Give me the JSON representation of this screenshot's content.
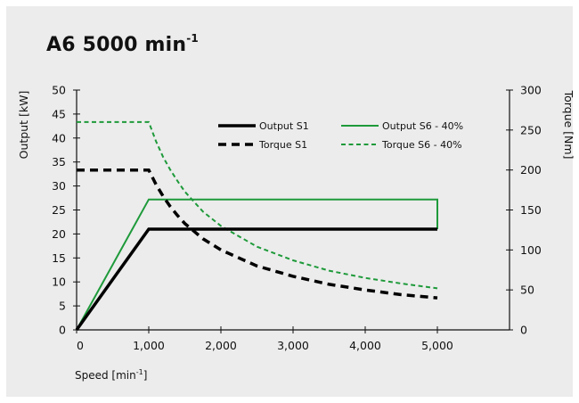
{
  "title": {
    "main": "A6 5000 min",
    "sup": "-1"
  },
  "xlabel": {
    "main": "Speed [min",
    "sup": "-1",
    "end": "]"
  },
  "chart_data": {
    "type": "line",
    "title": "A6 5000 min-1",
    "xlabel": "Speed [min-1]",
    "ylabel_left": "Output [kW]",
    "ylabel_right": "Torque [Nm]",
    "xlim": [
      0,
      6000
    ],
    "ylim_left": [
      0,
      50
    ],
    "ylim_right": [
      0,
      300
    ],
    "x_ticks": [
      0,
      1000,
      2000,
      3000,
      4000,
      5000
    ],
    "x_tick_labels": [
      "0",
      "1,000",
      "2,000",
      "3,000",
      "4,000",
      "5,000"
    ],
    "y_left_ticks": [
      0,
      5,
      10,
      15,
      20,
      25,
      30,
      35,
      40,
      45,
      50
    ],
    "y_left_tick_labels": [
      "0",
      "5",
      "10",
      "15",
      "20",
      "25",
      "30",
      "35",
      "40",
      "45",
      "50"
    ],
    "y_right_ticks": [
      0,
      50,
      100,
      150,
      200,
      250,
      300
    ],
    "y_right_tick_labels": [
      "0",
      "50",
      "100",
      "150",
      "200",
      "250",
      "300"
    ],
    "grid": false,
    "legend_position": "top-right",
    "colors": {
      "s1": "#000000",
      "s6": "#1e9a3a"
    },
    "series": [
      {
        "name": "Output S1",
        "axis": "left",
        "style": "solid",
        "color": "#000000",
        "x": [
          0,
          1000,
          5000
        ],
        "y": [
          0,
          21,
          21
        ]
      },
      {
        "name": "Torque S1",
        "axis": "right",
        "style": "dashed",
        "color": "#000000",
        "x": [
          0,
          1000,
          1100,
          1200,
          1300,
          1400,
          1500,
          1750,
          2000,
          2500,
          3000,
          3500,
          4000,
          4500,
          5000
        ],
        "y": [
          200,
          200,
          182,
          167,
          154,
          143,
          133,
          114,
          100,
          80,
          67,
          57,
          50,
          44,
          40
        ]
      },
      {
        "name": "Output S6 - 40%",
        "axis": "left",
        "style": "solid",
        "color": "#1e9a3a",
        "x": [
          0,
          1000,
          5000,
          5000
        ],
        "y": [
          0,
          27.2,
          27.2,
          21
        ]
      },
      {
        "name": "Torque S6 - 40%",
        "axis": "right",
        "style": "dashed",
        "color": "#1e9a3a",
        "x": [
          0,
          1000,
          1100,
          1200,
          1300,
          1400,
          1500,
          1750,
          2000,
          2500,
          3000,
          3500,
          4000,
          4500,
          5000
        ],
        "y": [
          260,
          260,
          236,
          216,
          200,
          186,
          173,
          148,
          130,
          104,
          87,
          74,
          65,
          58,
          52
        ]
      }
    ]
  }
}
